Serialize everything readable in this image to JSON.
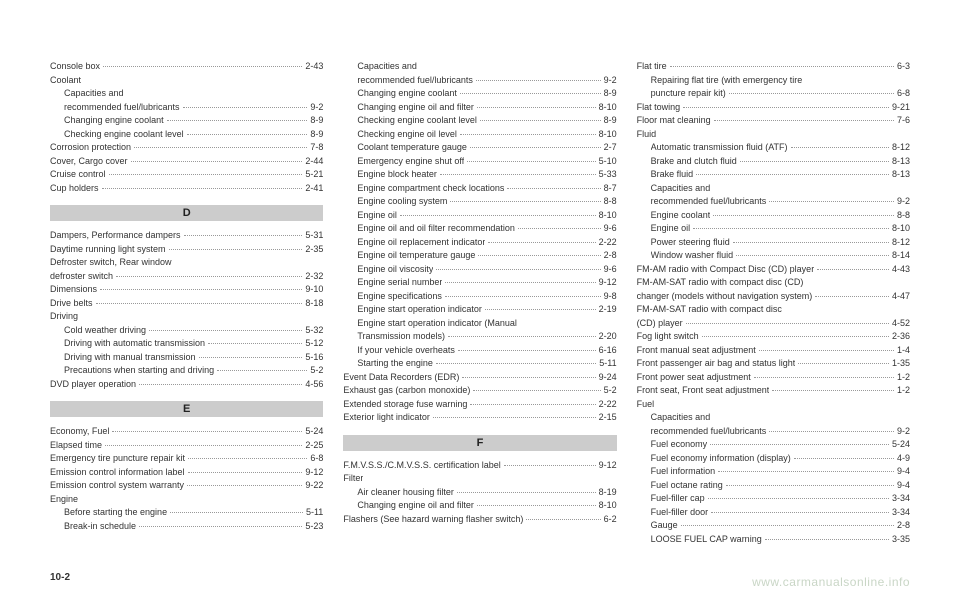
{
  "pageNumber": "10-2",
  "watermark": "www.carmanualsonline.info",
  "columns": [
    {
      "items": [
        {
          "type": "entry",
          "label": "Console box",
          "page": "2-43"
        },
        {
          "type": "entry",
          "label": "Coolant",
          "page": ""
        },
        {
          "type": "entry",
          "indent": true,
          "label": "Capacities and",
          "page": ""
        },
        {
          "type": "entry",
          "indent": true,
          "label": "recommended fuel/lubricants",
          "page": "9-2"
        },
        {
          "type": "entry",
          "indent": true,
          "label": "Changing engine coolant",
          "page": "8-9"
        },
        {
          "type": "entry",
          "indent": true,
          "label": "Checking engine coolant level",
          "page": "8-9"
        },
        {
          "type": "entry",
          "label": "Corrosion protection",
          "page": "7-8"
        },
        {
          "type": "entry",
          "label": "Cover, Cargo cover",
          "page": "2-44"
        },
        {
          "type": "entry",
          "label": "Cruise control",
          "page": "5-21"
        },
        {
          "type": "entry",
          "label": "Cup holders",
          "page": "2-41"
        },
        {
          "type": "letter",
          "text": "D"
        },
        {
          "type": "entry",
          "label": "Dampers, Performance dampers",
          "page": "5-31"
        },
        {
          "type": "entry",
          "label": "Daytime running light system",
          "page": "2-35"
        },
        {
          "type": "entry",
          "label": "Defroster switch, Rear window",
          "page": ""
        },
        {
          "type": "entry",
          "label": "defroster switch",
          "page": "2-32"
        },
        {
          "type": "entry",
          "label": "Dimensions",
          "page": "9-10"
        },
        {
          "type": "entry",
          "label": "Drive belts",
          "page": "8-18"
        },
        {
          "type": "entry",
          "label": "Driving",
          "page": ""
        },
        {
          "type": "entry",
          "indent": true,
          "label": "Cold weather driving",
          "page": "5-32"
        },
        {
          "type": "entry",
          "indent": true,
          "label": "Driving with automatic transmission",
          "page": "5-12"
        },
        {
          "type": "entry",
          "indent": true,
          "label": "Driving with manual transmission",
          "page": "5-16"
        },
        {
          "type": "entry",
          "indent": true,
          "label": "Precautions when starting and driving",
          "page": "5-2"
        },
        {
          "type": "entry",
          "label": "DVD player operation",
          "page": "4-56"
        },
        {
          "type": "letter",
          "text": "E"
        },
        {
          "type": "entry",
          "label": "Economy, Fuel",
          "page": "5-24"
        },
        {
          "type": "entry",
          "label": "Elapsed time",
          "page": "2-25"
        },
        {
          "type": "entry",
          "label": "Emergency tire puncture repair kit",
          "page": "6-8"
        },
        {
          "type": "entry",
          "label": "Emission control information label",
          "page": "9-12"
        },
        {
          "type": "entry",
          "label": "Emission control system warranty",
          "page": "9-22"
        },
        {
          "type": "entry",
          "label": "Engine",
          "page": ""
        },
        {
          "type": "entry",
          "indent": true,
          "label": "Before starting the engine",
          "page": "5-11"
        },
        {
          "type": "entry",
          "indent": true,
          "label": "Break-in schedule",
          "page": "5-23"
        }
      ]
    },
    {
      "items": [
        {
          "type": "entry",
          "indent": true,
          "label": "Capacities and",
          "page": ""
        },
        {
          "type": "entry",
          "indent": true,
          "label": "recommended fuel/lubricants",
          "page": "9-2"
        },
        {
          "type": "entry",
          "indent": true,
          "label": "Changing engine coolant",
          "page": "8-9"
        },
        {
          "type": "entry",
          "indent": true,
          "label": "Changing engine oil and filter",
          "page": "8-10"
        },
        {
          "type": "entry",
          "indent": true,
          "label": "Checking engine coolant level",
          "page": "8-9"
        },
        {
          "type": "entry",
          "indent": true,
          "label": "Checking engine oil level",
          "page": "8-10"
        },
        {
          "type": "entry",
          "indent": true,
          "label": "Coolant temperature gauge",
          "page": "2-7"
        },
        {
          "type": "entry",
          "indent": true,
          "label": "Emergency engine shut off",
          "page": "5-10"
        },
        {
          "type": "entry",
          "indent": true,
          "label": "Engine block heater",
          "page": "5-33"
        },
        {
          "type": "entry",
          "indent": true,
          "label": "Engine compartment check locations",
          "page": "8-7"
        },
        {
          "type": "entry",
          "indent": true,
          "label": "Engine cooling system",
          "page": "8-8"
        },
        {
          "type": "entry",
          "indent": true,
          "label": "Engine oil",
          "page": "8-10"
        },
        {
          "type": "entry",
          "indent": true,
          "label": "Engine oil and oil filter recommendation",
          "page": "9-6"
        },
        {
          "type": "entry",
          "indent": true,
          "label": "Engine oil replacement indicator",
          "page": "2-22"
        },
        {
          "type": "entry",
          "indent": true,
          "label": "Engine oil temperature gauge",
          "page": "2-8"
        },
        {
          "type": "entry",
          "indent": true,
          "label": "Engine oil viscosity",
          "page": "9-6"
        },
        {
          "type": "entry",
          "indent": true,
          "label": "Engine serial number",
          "page": "9-12"
        },
        {
          "type": "entry",
          "indent": true,
          "label": "Engine specifications",
          "page": "9-8"
        },
        {
          "type": "entry",
          "indent": true,
          "label": "Engine start operation indicator",
          "page": "2-19"
        },
        {
          "type": "entry",
          "indent": true,
          "label": "Engine start operation indicator (Manual",
          "page": ""
        },
        {
          "type": "entry",
          "indent": true,
          "label": "Transmission models)",
          "page": "2-20"
        },
        {
          "type": "entry",
          "indent": true,
          "label": "If your vehicle overheats",
          "page": "6-16"
        },
        {
          "type": "entry",
          "indent": true,
          "label": "Starting the engine",
          "page": "5-11"
        },
        {
          "type": "entry",
          "label": "Event Data Recorders (EDR)",
          "page": "9-24"
        },
        {
          "type": "entry",
          "label": "Exhaust gas (carbon monoxide)",
          "page": "5-2"
        },
        {
          "type": "entry",
          "label": "Extended storage fuse warning",
          "page": "2-22"
        },
        {
          "type": "entry",
          "label": "Exterior light indicator",
          "page": "2-15"
        },
        {
          "type": "letter",
          "text": "F"
        },
        {
          "type": "entry",
          "label": "F.M.V.S.S./C.M.V.S.S. certification label",
          "page": "9-12"
        },
        {
          "type": "entry",
          "label": "Filter",
          "page": ""
        },
        {
          "type": "entry",
          "indent": true,
          "label": "Air cleaner housing filter",
          "page": "8-19"
        },
        {
          "type": "entry",
          "indent": true,
          "label": "Changing engine oil and filter",
          "page": "8-10"
        },
        {
          "type": "entry",
          "label": "Flashers (See hazard warning flasher switch)",
          "page": "6-2"
        }
      ]
    },
    {
      "items": [
        {
          "type": "entry",
          "label": "Flat tire",
          "page": "6-3"
        },
        {
          "type": "entry",
          "indent": true,
          "label": "Repairing flat tire (with emergency tire",
          "page": ""
        },
        {
          "type": "entry",
          "indent": true,
          "label": "puncture repair kit)",
          "page": "6-8"
        },
        {
          "type": "entry",
          "label": "Flat towing",
          "page": "9-21"
        },
        {
          "type": "entry",
          "label": "Floor mat cleaning",
          "page": "7-6"
        },
        {
          "type": "entry",
          "label": "Fluid",
          "page": ""
        },
        {
          "type": "entry",
          "indent": true,
          "label": "Automatic transmission fluid (ATF)",
          "page": "8-12"
        },
        {
          "type": "entry",
          "indent": true,
          "label": "Brake and clutch fluid",
          "page": "8-13"
        },
        {
          "type": "entry",
          "indent": true,
          "label": "Brake fluid",
          "page": "8-13"
        },
        {
          "type": "entry",
          "indent": true,
          "label": "Capacities and",
          "page": ""
        },
        {
          "type": "entry",
          "indent": true,
          "label": "recommended fuel/lubricants",
          "page": "9-2"
        },
        {
          "type": "entry",
          "indent": true,
          "label": "Engine coolant",
          "page": "8-8"
        },
        {
          "type": "entry",
          "indent": true,
          "label": "Engine oil",
          "page": "8-10"
        },
        {
          "type": "entry",
          "indent": true,
          "label": "Power steering fluid",
          "page": "8-12"
        },
        {
          "type": "entry",
          "indent": true,
          "label": "Window washer fluid",
          "page": "8-14"
        },
        {
          "type": "entry",
          "label": "FM-AM radio with Compact Disc (CD) player",
          "page": "4-43"
        },
        {
          "type": "entry",
          "label": "FM-AM-SAT radio with compact disc (CD)",
          "page": ""
        },
        {
          "type": "entry",
          "label": "changer (models without navigation system)",
          "page": "4-47"
        },
        {
          "type": "entry",
          "label": "FM-AM-SAT radio with compact disc",
          "page": ""
        },
        {
          "type": "entry",
          "label": "(CD) player",
          "page": "4-52"
        },
        {
          "type": "entry",
          "label": "Fog light switch",
          "page": "2-36"
        },
        {
          "type": "entry",
          "label": "Front manual seat adjustment",
          "page": "1-4"
        },
        {
          "type": "entry",
          "label": "Front passenger air bag and status light",
          "page": "1-35"
        },
        {
          "type": "entry",
          "label": "Front power seat adjustment",
          "page": "1-2"
        },
        {
          "type": "entry",
          "label": "Front seat, Front seat adjustment",
          "page": "1-2"
        },
        {
          "type": "entry",
          "label": "Fuel",
          "page": ""
        },
        {
          "type": "entry",
          "indent": true,
          "label": "Capacities and",
          "page": ""
        },
        {
          "type": "entry",
          "indent": true,
          "label": "recommended fuel/lubricants",
          "page": "9-2"
        },
        {
          "type": "entry",
          "indent": true,
          "label": "Fuel economy",
          "page": "5-24"
        },
        {
          "type": "entry",
          "indent": true,
          "label": "Fuel economy information (display)",
          "page": "4-9"
        },
        {
          "type": "entry",
          "indent": true,
          "label": "Fuel information",
          "page": "9-4"
        },
        {
          "type": "entry",
          "indent": true,
          "label": "Fuel octane rating",
          "page": "9-4"
        },
        {
          "type": "entry",
          "indent": true,
          "label": "Fuel-filler cap",
          "page": "3-34"
        },
        {
          "type": "entry",
          "indent": true,
          "label": "Fuel-filler door",
          "page": "3-34"
        },
        {
          "type": "entry",
          "indent": true,
          "label": "Gauge",
          "page": "2-8"
        },
        {
          "type": "entry",
          "indent": true,
          "label": "LOOSE FUEL CAP warning",
          "page": "3-35"
        }
      ]
    }
  ]
}
